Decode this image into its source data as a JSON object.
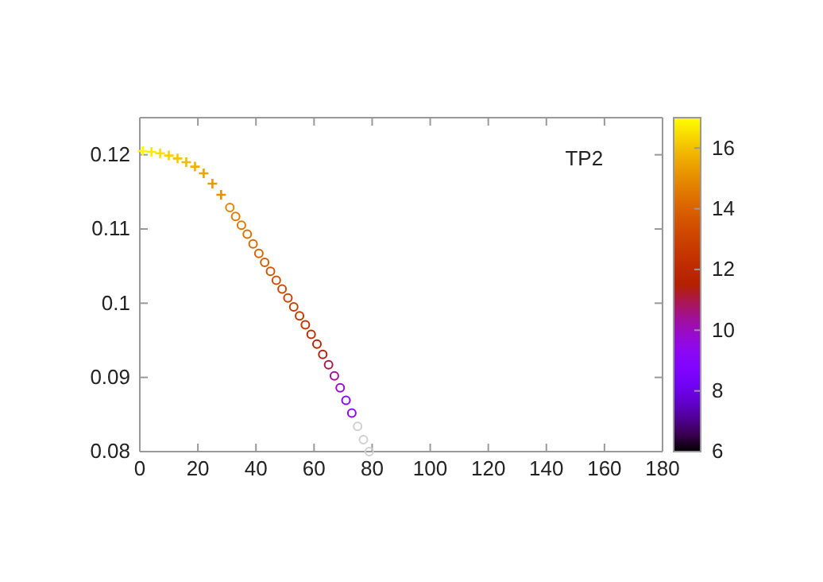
{
  "chart_data": {
    "type": "scatter",
    "annotations": [
      "TP2"
    ],
    "xlim": [
      0,
      180
    ],
    "xticks": [
      0,
      20,
      40,
      60,
      80,
      100,
      120,
      140,
      160,
      180
    ],
    "ylim": [
      0.08,
      0.125
    ],
    "yticks": [
      0.08,
      0.09,
      0.1,
      0.11,
      0.12
    ],
    "clim": [
      6,
      17
    ],
    "cticks": [
      6,
      8,
      10,
      12,
      14,
      16
    ],
    "grid": false,
    "series": [
      {
        "marker": "cross",
        "x": [
          1,
          4,
          7,
          10,
          13,
          16,
          19,
          22,
          25,
          28
        ],
        "values": [
          0.1205,
          0.1204,
          0.1202,
          0.1199,
          0.1195,
          0.119,
          0.1184,
          0.1175,
          0.1161,
          0.1146
        ],
        "cvalues": [
          16.9,
          16.7,
          16.5,
          16.3,
          16.1,
          15.9,
          15.7,
          15.5,
          15.3,
          15.1
        ],
        "colors": [
          "#fef800",
          "#fceb00",
          "#f9de00",
          "#f7d100",
          "#f4c500",
          "#f2ba00",
          "#efaf00",
          "#eda400",
          "#ea9a00",
          "#e89000"
        ]
      },
      {
        "marker": "circle",
        "x": [
          31,
          33,
          35,
          37,
          39,
          41,
          43,
          45,
          47,
          49,
          51,
          53,
          55,
          57,
          59,
          61,
          63,
          65,
          67,
          69,
          71,
          73,
          75,
          77,
          79
        ],
        "values": [
          0.1129,
          0.1117,
          0.1105,
          0.1093,
          0.108,
          0.1067,
          0.1055,
          0.1043,
          0.1031,
          0.1019,
          0.1007,
          0.0995,
          0.0983,
          0.0971,
          0.0958,
          0.0945,
          0.0931,
          0.0917,
          0.0902,
          0.0886,
          0.0869,
          0.0852,
          0.0834,
          0.0816,
          0.08
        ],
        "cvalues": [
          14.8,
          14.6,
          14.5,
          14.3,
          14.2,
          14,
          13.8,
          13.6,
          13.4,
          13.2,
          13,
          12.8,
          12.6,
          12.4,
          12.1,
          11.8,
          11.4,
          11,
          10.4,
          9.8,
          9.4,
          9.2,
          null,
          null,
          null
        ],
        "colors": [
          "#e48300",
          "#e17a00",
          "#e07600",
          "#dd6e00",
          "#dc6a00",
          "#d96200",
          "#d75b00",
          "#d45400",
          "#d14e00",
          "#ce4800",
          "#cb4200",
          "#c83c00",
          "#c63700",
          "#c33200",
          "#be2b00",
          "#b92500",
          "#b31e0f",
          "#ac1848",
          "#a11096",
          "#960bd2",
          "#8e08ed",
          "#8a06f7",
          "#d0d0d0",
          "#d0d0d0",
          "#d0d0d0"
        ]
      }
    ]
  }
}
